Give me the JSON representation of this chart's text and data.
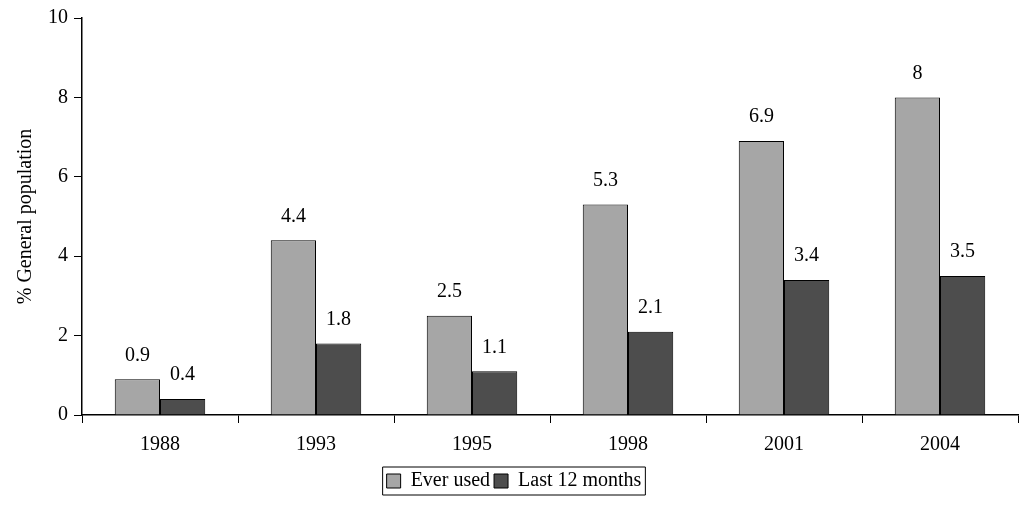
{
  "chart_data": {
    "type": "bar",
    "ylabel": "% General population",
    "categories": [
      "1988",
      "1993",
      "1995",
      "1998",
      "2001",
      "2004"
    ],
    "series": [
      {
        "name": "Ever used",
        "color": "#a6a6a6",
        "values": [
          0.9,
          4.4,
          2.5,
          5.3,
          6.9,
          8
        ]
      },
      {
        "name": "Last 12 months",
        "color": "#4d4d4d",
        "values": [
          0.4,
          1.8,
          1.1,
          2.1,
          3.4,
          3.5
        ]
      }
    ],
    "ylim": [
      0,
      10
    ],
    "yticks": [
      0,
      2,
      4,
      6,
      8,
      10
    ],
    "data_labels": true,
    "legend": "bottom",
    "grid": false
  }
}
